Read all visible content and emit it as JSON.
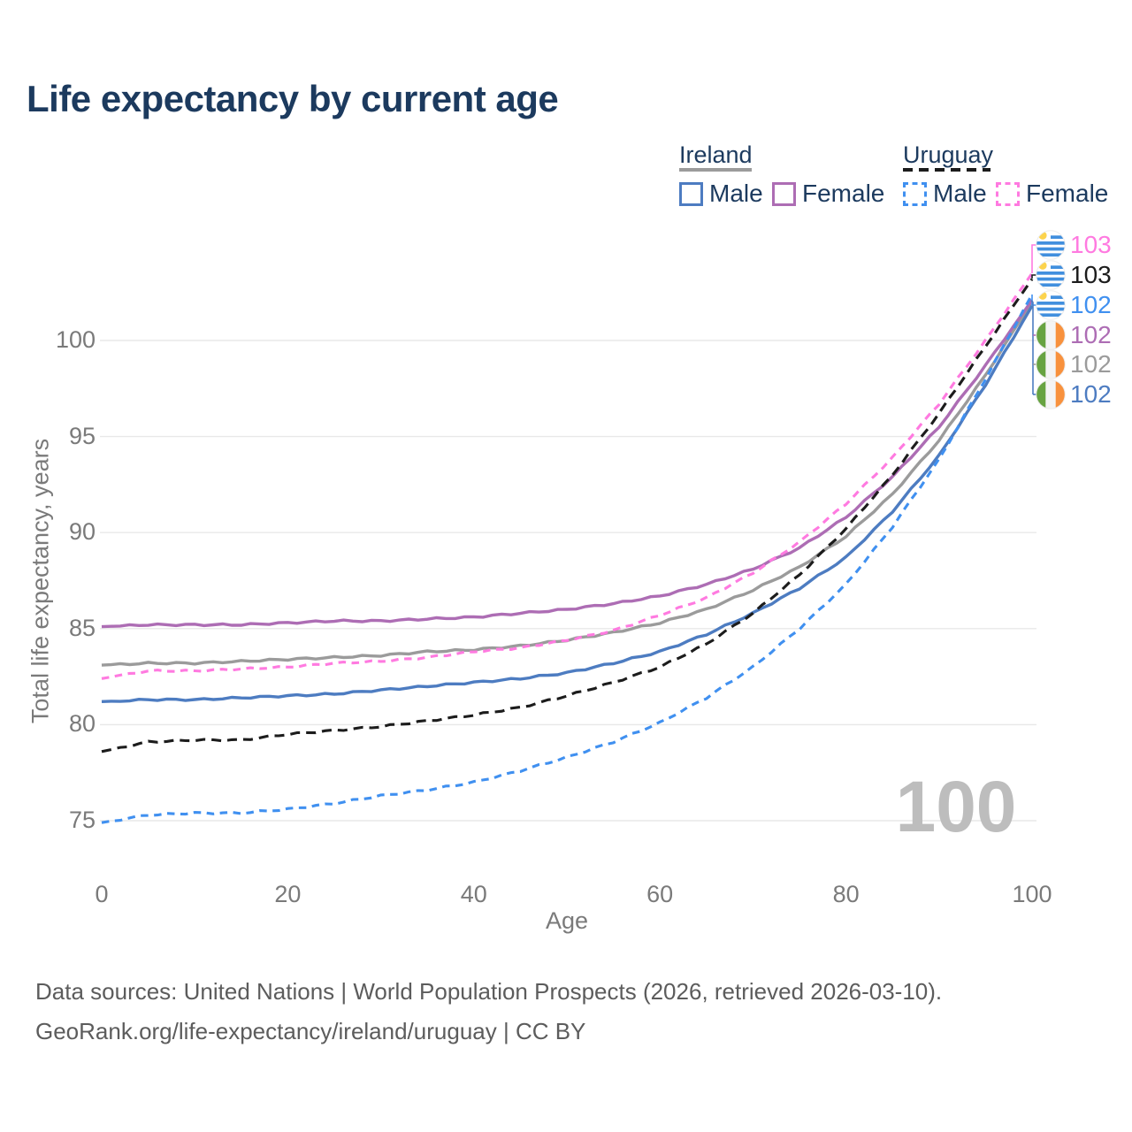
{
  "title": "Life expectancy by current age",
  "legend": {
    "groups": [
      {
        "country": "Ireland",
        "style": "solid",
        "color": "#9b9b9b"
      },
      {
        "country": "Uruguay",
        "style": "dashed",
        "color": "#1c1c1c"
      }
    ],
    "entries": [
      {
        "label": "Male",
        "country": "Ireland",
        "style": "solid",
        "color": "#4d7cc1"
      },
      {
        "label": "Female",
        "country": "Ireland",
        "style": "solid",
        "color": "#ad6db4"
      },
      {
        "label": "Male",
        "country": "Uruguay",
        "style": "dashed",
        "color": "#4090f0"
      },
      {
        "label": "Female",
        "country": "Uruguay",
        "style": "dashed",
        "color": "#ff7ae0"
      }
    ]
  },
  "chart_data": {
    "type": "line",
    "title": "Life expectancy by current age",
    "xlabel": "Age",
    "ylabel": "Total life expectancy, years",
    "xticks": [
      0,
      20,
      40,
      60,
      80,
      100
    ],
    "yticks": [
      75,
      80,
      85,
      90,
      95,
      100
    ],
    "xlim": [
      0,
      100
    ],
    "ylim": [
      73,
      106
    ],
    "grid": "horizontal",
    "legend_position": "top-right",
    "ages": [
      0,
      5,
      10,
      15,
      20,
      25,
      30,
      35,
      40,
      45,
      50,
      55,
      60,
      65,
      70,
      75,
      80,
      85,
      90,
      95,
      100
    ],
    "series": [
      {
        "name": "Ireland Male",
        "country": "Ireland",
        "sex": "Male",
        "style": "solid",
        "color": "#4d7cc1",
        "end_label": "102",
        "values": [
          81.2,
          81.3,
          81.3,
          81.4,
          81.5,
          81.6,
          81.8,
          82.0,
          82.2,
          82.4,
          82.7,
          83.2,
          83.8,
          84.7,
          85.8,
          87.1,
          88.7,
          91.1,
          94.0,
          97.7,
          101.8
        ]
      },
      {
        "name": "Ireland Female",
        "country": "Ireland",
        "sex": "Female",
        "style": "solid",
        "color": "#ad6db4",
        "end_label": "102",
        "values": [
          85.1,
          85.2,
          85.2,
          85.2,
          85.3,
          85.4,
          85.4,
          85.5,
          85.6,
          85.8,
          86.0,
          86.3,
          86.7,
          87.3,
          88.1,
          89.2,
          90.8,
          92.9,
          95.5,
          98.7,
          102.1
        ]
      },
      {
        "name": "Ireland Both sexes",
        "country": "Ireland",
        "sex": "Both",
        "style": "solid",
        "color": "#9b9b9b",
        "end_label": "102",
        "values": [
          83.1,
          83.2,
          83.2,
          83.3,
          83.4,
          83.5,
          83.6,
          83.8,
          83.9,
          84.1,
          84.4,
          84.8,
          85.3,
          86.0,
          87.0,
          88.2,
          89.8,
          92.0,
          94.8,
          98.2,
          102.0
        ]
      },
      {
        "name": "Uruguay Male",
        "country": "Uruguay",
        "sex": "Male",
        "style": "dashed",
        "color": "#4090f0",
        "end_label": "102",
        "values": [
          74.9,
          75.3,
          75.4,
          75.4,
          75.6,
          75.9,
          76.3,
          76.6,
          77.0,
          77.6,
          78.3,
          79.1,
          80.1,
          81.4,
          83.0,
          85.0,
          87.3,
          90.3,
          93.8,
          98.0,
          102.4
        ]
      },
      {
        "name": "Uruguay Female",
        "country": "Uruguay",
        "sex": "Female",
        "style": "dashed",
        "color": "#ff7ae0",
        "end_label": "103",
        "values": [
          82.4,
          82.8,
          82.8,
          82.9,
          83.0,
          83.2,
          83.3,
          83.5,
          83.8,
          84.0,
          84.4,
          84.9,
          85.7,
          86.6,
          87.9,
          89.5,
          91.5,
          93.9,
          96.7,
          100.0,
          103.5
        ]
      },
      {
        "name": "Uruguay Both sexes",
        "country": "Uruguay",
        "sex": "Both",
        "style": "dashed",
        "color": "#1c1c1c",
        "end_label": "103",
        "values": [
          78.6,
          79.1,
          79.2,
          79.2,
          79.5,
          79.7,
          79.9,
          80.2,
          80.5,
          80.9,
          81.5,
          82.2,
          83.0,
          84.2,
          85.8,
          87.8,
          90.2,
          93.0,
          96.2,
          99.7,
          103.2
        ]
      }
    ],
    "end_labels": [
      {
        "flag": "uruguay",
        "value": "103",
        "color": "#ff7ae0"
      },
      {
        "flag": "uruguay",
        "value": "103",
        "color": "#1c1c1c"
      },
      {
        "flag": "uruguay",
        "value": "102",
        "color": "#4090f0"
      },
      {
        "flag": "ireland",
        "value": "102",
        "color": "#ad6db4"
      },
      {
        "flag": "ireland",
        "value": "102",
        "color": "#9b9b9b"
      },
      {
        "flag": "ireland",
        "value": "102",
        "color": "#4d7cc1"
      }
    ],
    "watermark": "100"
  },
  "footer": {
    "line1": "Data sources: United Nations | World Population Prospects (2026, retrieved 2026-03-10).",
    "line2": "GeoRank.org/life-expectancy/ireland/uruguay | CC BY"
  }
}
